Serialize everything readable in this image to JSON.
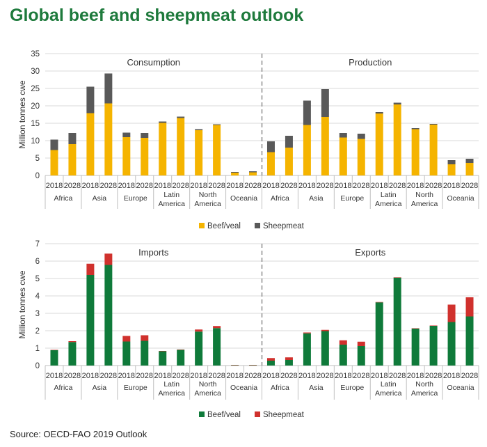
{
  "title": "Global beef and sheepmeat outlook",
  "source": "Source: OECD-FAO 2019 Outlook",
  "colors": {
    "title": "#1e7a3c",
    "beef_top": "#f5b400",
    "sheep_top": "#595959",
    "beef_bottom": "#0f7a3a",
    "sheep_bottom": "#d0312d"
  },
  "chart_data": [
    {
      "type": "bar",
      "stacked": true,
      "ylabel": "Million tonnes cwe",
      "ylim": [
        0,
        35
      ],
      "yticks": [
        0,
        5,
        10,
        15,
        20,
        25,
        30,
        35
      ],
      "panels": [
        {
          "title": "Consumption",
          "regions": [
            "Africa",
            "Asia",
            "Europe",
            "Latin America",
            "North America",
            "Oceania"
          ],
          "years": [
            "2018",
            "2028"
          ],
          "series": [
            {
              "name": "Beef/veal",
              "values": [
                7.3,
                9.0,
                17.9,
                20.7,
                11.0,
                10.8,
                15.1,
                16.5,
                13.0,
                14.5,
                0.8,
                0.9
              ]
            },
            {
              "name": "Sheepmeat",
              "values": [
                3.0,
                3.2,
                7.6,
                8.6,
                1.3,
                1.4,
                0.4,
                0.4,
                0.3,
                0.2,
                0.2,
                0.3
              ]
            }
          ]
        },
        {
          "title": "Production",
          "regions": [
            "Africa",
            "Asia",
            "Europe",
            "Latin America",
            "North America",
            "Oceania"
          ],
          "years": [
            "2018",
            "2028"
          ],
          "series": [
            {
              "name": "Beef/veal",
              "values": [
                6.7,
                8.0,
                14.5,
                16.8,
                10.9,
                10.5,
                17.8,
                20.4,
                13.3,
                14.6,
                3.2,
                3.6
              ]
            },
            {
              "name": "Sheepmeat",
              "values": [
                3.1,
                3.4,
                7.0,
                8.0,
                1.3,
                1.5,
                0.4,
                0.5,
                0.3,
                0.2,
                1.2,
                1.2
              ]
            }
          ]
        }
      ],
      "legend": [
        "Beef/veal",
        "Sheepmeat"
      ],
      "legend_position": "bottom"
    },
    {
      "type": "bar",
      "stacked": true,
      "ylabel": "Million tonnes cwe",
      "ylim": [
        0,
        7
      ],
      "yticks": [
        0,
        1,
        2,
        3,
        4,
        5,
        6,
        7
      ],
      "panels": [
        {
          "title": "Imports",
          "regions": [
            "Africa",
            "Asia",
            "Europe",
            "Latin America",
            "North America",
            "Oceania"
          ],
          "years": [
            "2018",
            "2028"
          ],
          "series": [
            {
              "name": "Beef/veal",
              "values": [
                0.88,
                1.35,
                5.2,
                5.78,
                1.38,
                1.42,
                0.82,
                0.9,
                1.95,
                2.15,
                0.02,
                0.02
              ]
            },
            {
              "name": "Sheepmeat",
              "values": [
                0.02,
                0.05,
                0.65,
                0.65,
                0.32,
                0.32,
                0.02,
                0.02,
                0.12,
                0.12,
                0.02,
                0.02
              ]
            }
          ]
        },
        {
          "title": "Exports",
          "regions": [
            "Africa",
            "Asia",
            "Europe",
            "Latin America",
            "North America",
            "Oceania"
          ],
          "years": [
            "2018",
            "2028"
          ],
          "series": [
            {
              "name": "Beef/veal",
              "values": [
                0.28,
                0.32,
                1.85,
                1.98,
                1.2,
                1.12,
                3.63,
                5.05,
                2.12,
                2.28,
                2.5,
                2.82
              ]
            },
            {
              "name": "Sheepmeat",
              "values": [
                0.15,
                0.15,
                0.05,
                0.07,
                0.25,
                0.25,
                0.02,
                0.02,
                0.02,
                0.02,
                1.0,
                1.1
              ]
            }
          ]
        }
      ],
      "legend": [
        "Beef/veal",
        "Sheepmeat"
      ],
      "legend_position": "bottom"
    }
  ]
}
